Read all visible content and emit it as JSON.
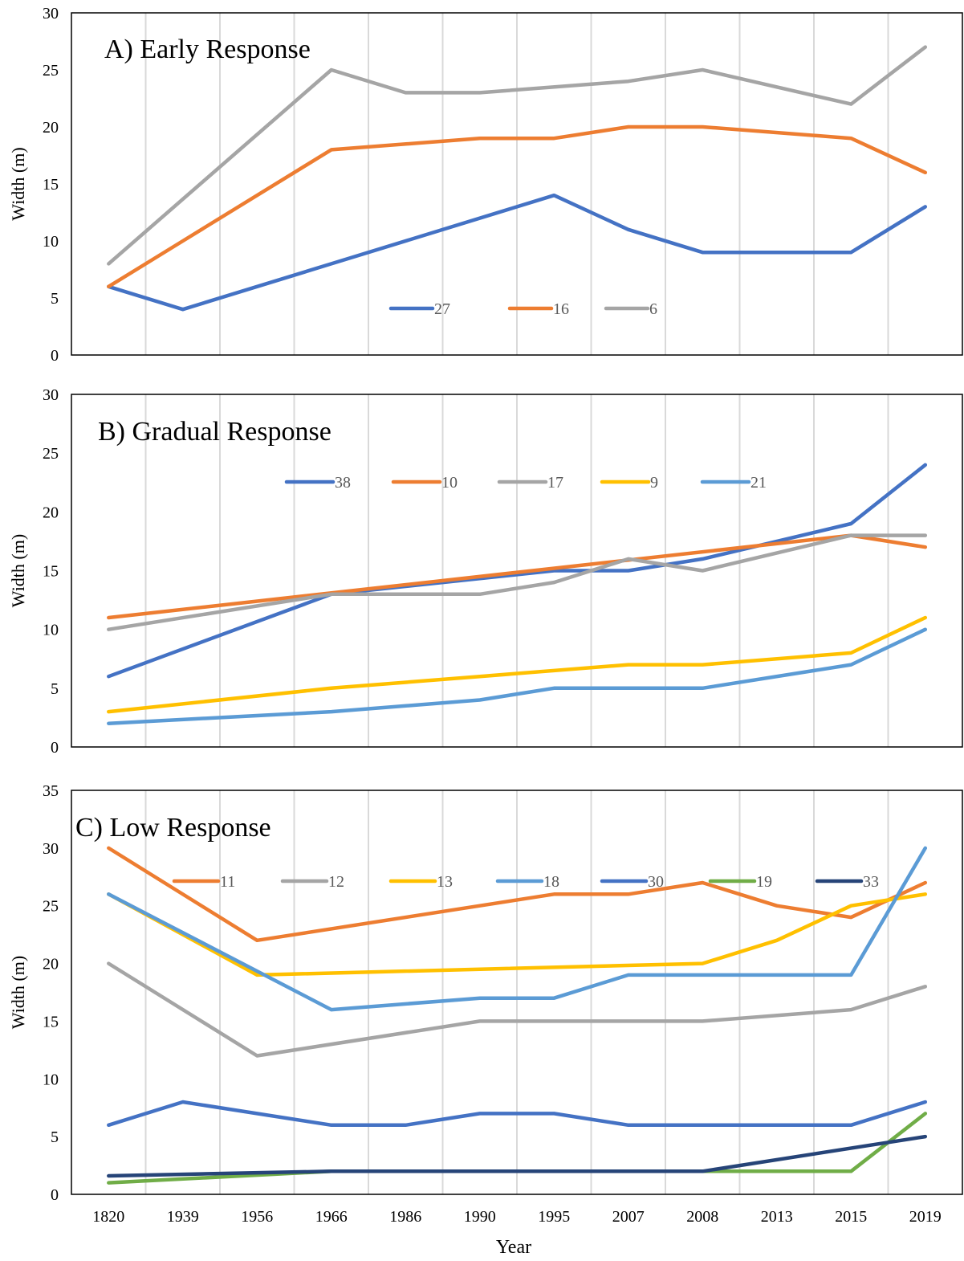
{
  "chart_data": [
    {
      "type": "line",
      "title": "A) Early Response",
      "ylabel": "Width (m)",
      "ylim": [
        0,
        30
      ],
      "yticks": [
        0,
        5,
        10,
        15,
        20,
        25,
        30
      ],
      "grid": "vertical",
      "legend": "bottom-center",
      "series": [
        {
          "name": "27",
          "color": "#4472C4",
          "points": [
            [
              0,
              6
            ],
            [
              1,
              4
            ],
            [
              3,
              8
            ],
            [
              6,
              14
            ],
            [
              7,
              11
            ],
            [
              8,
              9
            ],
            [
              10,
              9
            ],
            [
              11,
              13
            ]
          ]
        },
        {
          "name": "16",
          "color": "#ED7D31",
          "points": [
            [
              0,
              6
            ],
            [
              1,
              10
            ],
            [
              3,
              18
            ],
            [
              5,
              19
            ],
            [
              6,
              19
            ],
            [
              7,
              20
            ],
            [
              8,
              20
            ],
            [
              10,
              19
            ],
            [
              11,
              16
            ]
          ]
        },
        {
          "name": "6",
          "color": "#A5A5A5",
          "points": [
            [
              0,
              8
            ],
            [
              3,
              25
            ],
            [
              4,
              23
            ],
            [
              5,
              23
            ],
            [
              7,
              24
            ],
            [
              8,
              25
            ],
            [
              10,
              22
            ],
            [
              11,
              27
            ]
          ]
        }
      ]
    },
    {
      "type": "line",
      "title": "B) Gradual Response",
      "ylabel": "Width (m)",
      "ylim": [
        0,
        30
      ],
      "yticks": [
        0,
        5,
        10,
        15,
        20,
        25,
        30
      ],
      "grid": "vertical",
      "legend": "top-center",
      "series": [
        {
          "name": "38",
          "color": "#4472C4",
          "points": [
            [
              0,
              6
            ],
            [
              3,
              13
            ],
            [
              6,
              15
            ],
            [
              7,
              15
            ],
            [
              8,
              16
            ],
            [
              10,
              19
            ],
            [
              11,
              24
            ]
          ]
        },
        {
          "name": "10",
          "color": "#ED7D31",
          "points": [
            [
              0,
              11
            ],
            [
              10,
              18
            ],
            [
              11,
              17
            ]
          ]
        },
        {
          "name": "17",
          "color": "#A5A5A5",
          "points": [
            [
              0,
              10
            ],
            [
              3,
              13
            ],
            [
              5,
              13
            ],
            [
              6,
              14
            ],
            [
              7,
              16
            ],
            [
              8,
              15
            ],
            [
              10,
              18
            ],
            [
              11,
              18
            ]
          ]
        },
        {
          "name": "9",
          "color": "#FFC000",
          "points": [
            [
              0,
              3
            ],
            [
              3,
              5
            ],
            [
              5,
              6
            ],
            [
              7,
              7
            ],
            [
              8,
              7
            ],
            [
              10,
              8
            ],
            [
              11,
              11
            ]
          ]
        },
        {
          "name": "21",
          "color": "#5B9BD5",
          "points": [
            [
              0,
              2
            ],
            [
              3,
              3
            ],
            [
              5,
              4
            ],
            [
              6,
              5
            ],
            [
              8,
              5
            ],
            [
              10,
              7
            ],
            [
              11,
              10
            ]
          ]
        }
      ]
    },
    {
      "type": "line",
      "title": "C) Low Response",
      "xlabel": "Year",
      "ylabel": "Width (m)",
      "ylim": [
        0,
        35
      ],
      "yticks": [
        0,
        5,
        10,
        15,
        20,
        25,
        30,
        35
      ],
      "categories": [
        "1820",
        "1939",
        "1956",
        "1966",
        "1986",
        "1990",
        "1995",
        "2007",
        "2008",
        "2013",
        "2015",
        "2019"
      ],
      "grid": "vertical",
      "legend": "top-center",
      "series": [
        {
          "name": "11",
          "color": "#ED7D31",
          "points": [
            [
              0,
              30
            ],
            [
              2,
              22
            ],
            [
              5,
              25
            ],
            [
              6,
              26
            ],
            [
              7,
              26
            ],
            [
              8,
              27
            ],
            [
              9,
              25
            ],
            [
              10,
              24
            ],
            [
              11,
              27
            ]
          ]
        },
        {
          "name": "12",
          "color": "#A5A5A5",
          "points": [
            [
              0,
              20
            ],
            [
              2,
              12
            ],
            [
              5,
              15
            ],
            [
              8,
              15
            ],
            [
              10,
              16
            ],
            [
              11,
              18
            ]
          ]
        },
        {
          "name": "13",
          "color": "#FFC000",
          "points": [
            [
              0,
              26
            ],
            [
              2,
              19
            ],
            [
              8,
              20
            ],
            [
              9,
              22
            ],
            [
              10,
              25
            ],
            [
              11,
              26
            ]
          ]
        },
        {
          "name": "18",
          "color": "#5B9BD5",
          "points": [
            [
              0,
              26
            ],
            [
              3,
              16
            ],
            [
              5,
              17
            ],
            [
              6,
              17
            ],
            [
              7,
              19
            ],
            [
              10,
              19
            ],
            [
              11,
              30
            ]
          ]
        },
        {
          "name": "30",
          "color": "#4472C4",
          "points": [
            [
              0,
              6
            ],
            [
              1,
              8
            ],
            [
              3,
              6
            ],
            [
              4,
              6
            ],
            [
              5,
              7
            ],
            [
              6,
              7
            ],
            [
              7,
              6
            ],
            [
              10,
              6
            ],
            [
              11,
              8
            ]
          ]
        },
        {
          "name": "19",
          "color": "#70AD47",
          "points": [
            [
              0,
              1
            ],
            [
              3,
              2
            ],
            [
              10,
              2
            ],
            [
              11,
              7
            ]
          ]
        },
        {
          "name": "33",
          "color": "#264478",
          "points": [
            [
              0,
              1.6
            ],
            [
              3,
              2
            ],
            [
              8,
              2
            ],
            [
              11,
              5
            ]
          ]
        }
      ]
    }
  ]
}
